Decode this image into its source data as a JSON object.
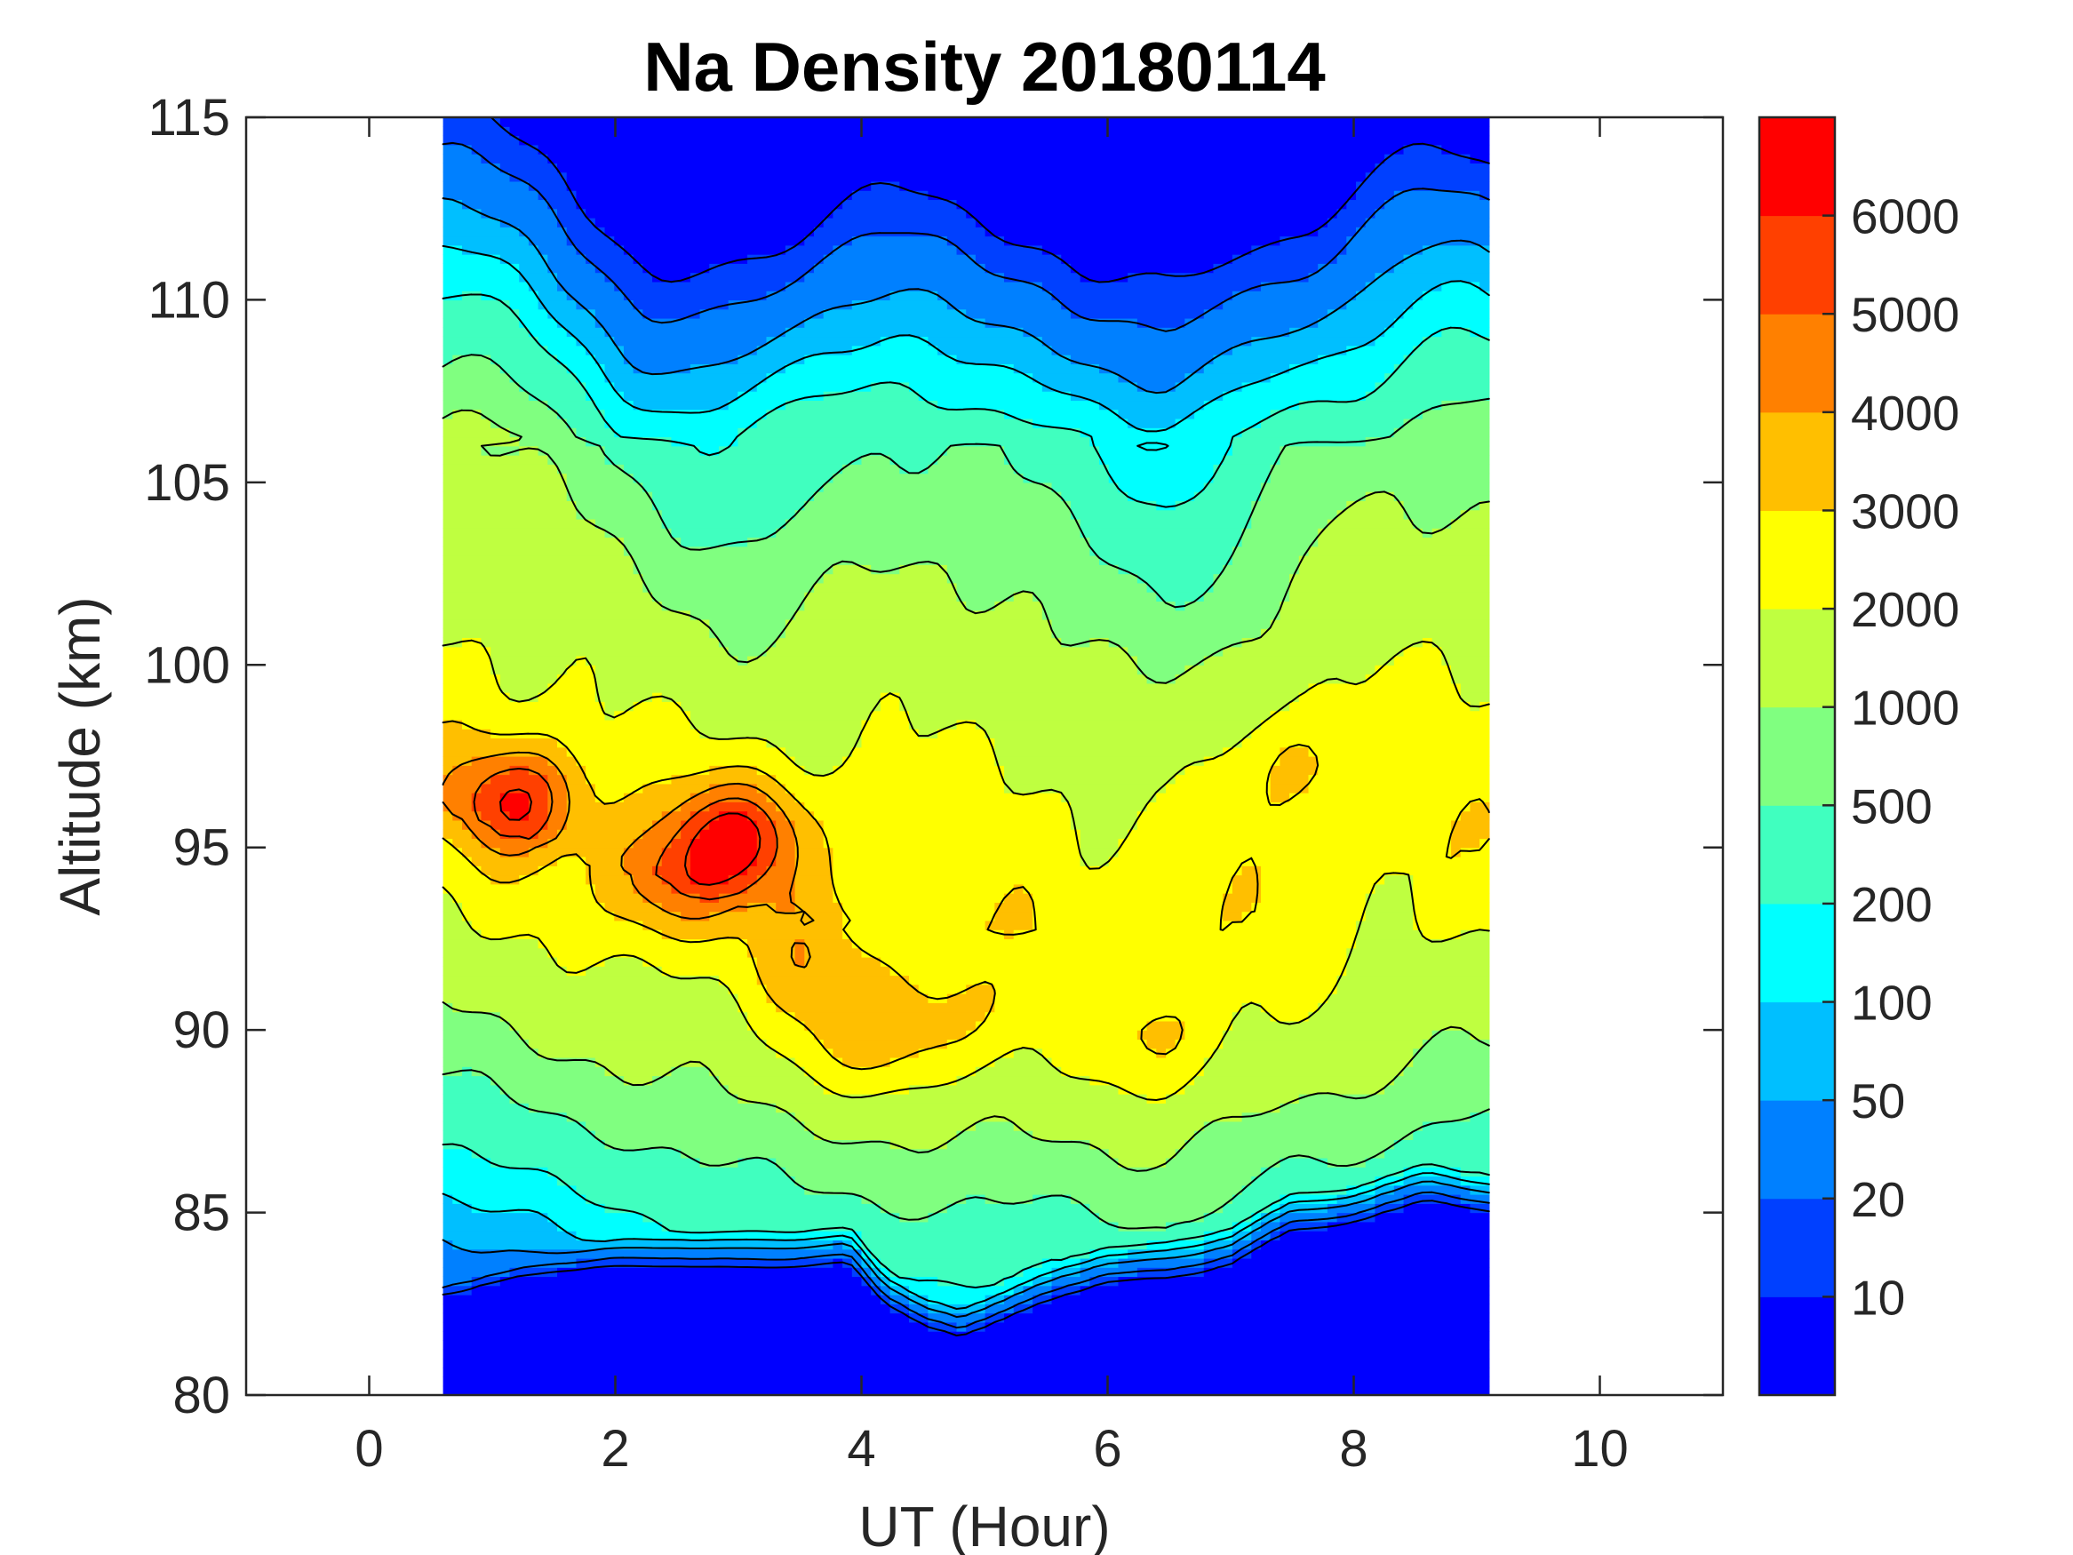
{
  "chart_data": {
    "type": "heatmap",
    "subtype": "filled-contour",
    "title": "Na Density 20180114",
    "xlabel": "UT (Hour)",
    "ylabel": "Altitude (km)",
    "xlim": [
      -1,
      11
    ],
    "ylim": [
      80,
      115
    ],
    "xticks": [
      0,
      2,
      4,
      6,
      8,
      10
    ],
    "xtick_labels": [
      "0",
      "2",
      "4",
      "6",
      "8",
      "10"
    ],
    "yticks": [
      80,
      85,
      90,
      95,
      100,
      105,
      110,
      115
    ],
    "ytick_labels": [
      "80",
      "85",
      "90",
      "95",
      "100",
      "105",
      "110",
      "115"
    ],
    "grid": false,
    "data_x_range": [
      0.6,
      9.1
    ],
    "data_y_range": [
      80,
      115
    ],
    "colorbar": {
      "placement": "right",
      "levels": [
        0,
        10,
        20,
        50,
        100,
        200,
        500,
        1000,
        2000,
        3000,
        4000,
        5000,
        6000,
        7000
      ],
      "tick_values": [
        10,
        20,
        50,
        100,
        200,
        500,
        1000,
        2000,
        3000,
        4000,
        5000,
        6000
      ],
      "tick_labels": [
        "10",
        "20",
        "50",
        "100",
        "200",
        "500",
        "1000",
        "2000",
        "3000",
        "4000",
        "5000",
        "6000"
      ],
      "colors": [
        "#0000ff",
        "#0040ff",
        "#0080ff",
        "#00bfff",
        "#00ffff",
        "#40ffbf",
        "#80ff80",
        "#bfff40",
        "#ffff00",
        "#ffbf00",
        "#ff8000",
        "#ff4000",
        "#ff0000"
      ]
    },
    "features": {
      "layer_peak_altitude_km": [
        {
          "ut": 0.6,
          "alt": 96.0
        },
        {
          "ut": 1.5,
          "alt": 95.0
        },
        {
          "ut": 2.5,
          "alt": 94.0
        },
        {
          "ut": 3.5,
          "alt": 93.0
        },
        {
          "ut": 4.5,
          "alt": 92.5
        },
        {
          "ut": 5.5,
          "alt": 92.5
        },
        {
          "ut": 6.5,
          "alt": 92.0
        },
        {
          "ut": 7.5,
          "alt": 93.5
        },
        {
          "ut": 8.5,
          "alt": 94.5
        },
        {
          "ut": 9.1,
          "alt": 95.0
        }
      ],
      "bottom_cutoff_altitude_km": [
        {
          "ut": 0.6,
          "alt": 81.5
        },
        {
          "ut": 1.0,
          "alt": 82.0
        },
        {
          "ut": 1.5,
          "alt": 82.5
        },
        {
          "ut": 2.0,
          "alt": 82.8
        },
        {
          "ut": 2.5,
          "alt": 83.0
        },
        {
          "ut": 3.0,
          "alt": 83.0
        },
        {
          "ut": 3.5,
          "alt": 83.1
        },
        {
          "ut": 3.9,
          "alt": 83.3
        },
        {
          "ut": 4.2,
          "alt": 82.0
        },
        {
          "ut": 4.5,
          "alt": 81.3
        },
        {
          "ut": 4.8,
          "alt": 81.0
        },
        {
          "ut": 5.2,
          "alt": 81.6
        },
        {
          "ut": 5.6,
          "alt": 82.2
        },
        {
          "ut": 6.0,
          "alt": 82.8
        },
        {
          "ut": 6.5,
          "alt": 83.0
        },
        {
          "ut": 7.0,
          "alt": 83.3
        },
        {
          "ut": 7.5,
          "alt": 84.2
        },
        {
          "ut": 8.0,
          "alt": 84.4
        },
        {
          "ut": 8.6,
          "alt": 85.1
        },
        {
          "ut": 9.1,
          "alt": 84.5
        }
      ],
      "high_density_patches": [
        {
          "ut": 1.2,
          "alt": 96.3,
          "peak": 5600
        },
        {
          "ut": 3.0,
          "alt": 95.3,
          "peak": 5800
        },
        {
          "ut": 2.4,
          "alt": 94.0,
          "peak": 4500
        },
        {
          "ut": 3.6,
          "alt": 92.0,
          "peak": 3600
        },
        {
          "ut": 3.9,
          "alt": 89.8,
          "peak": 3400
        },
        {
          "ut": 6.4,
          "alt": 89.8,
          "peak": 3500
        },
        {
          "ut": 7.6,
          "alt": 97.3,
          "peak": 3400
        },
        {
          "ut": 4.4,
          "alt": 89.8,
          "peak": 3100
        },
        {
          "ut": 4.8,
          "alt": 90.4,
          "peak": 3100
        }
      ]
    }
  }
}
